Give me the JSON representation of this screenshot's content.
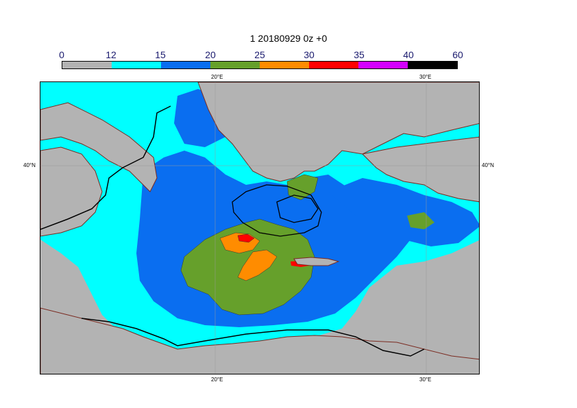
{
  "title": "1 20180929 0z +0",
  "colorbar": {
    "labels": [
      "0",
      "12",
      "15",
      "20",
      "25",
      "30",
      "35",
      "40",
      "60"
    ],
    "colors": [
      "#b3b3b3",
      "#00ffff",
      "#0a6ef0",
      "#66a02b",
      "#ff8c00",
      "#ff0000",
      "#d400ff",
      "#000000"
    ]
  },
  "ticks": {
    "top": [
      "20°E",
      "30°E"
    ],
    "bottom": [
      "20°E",
      "30°E"
    ],
    "left": [
      "40°N"
    ],
    "right": [
      "40°N"
    ]
  },
  "colors": {
    "land": "#b3b3b3",
    "coast": "#7a2a20",
    "contour": "#000000",
    "grid": "#9a9a9a"
  }
}
